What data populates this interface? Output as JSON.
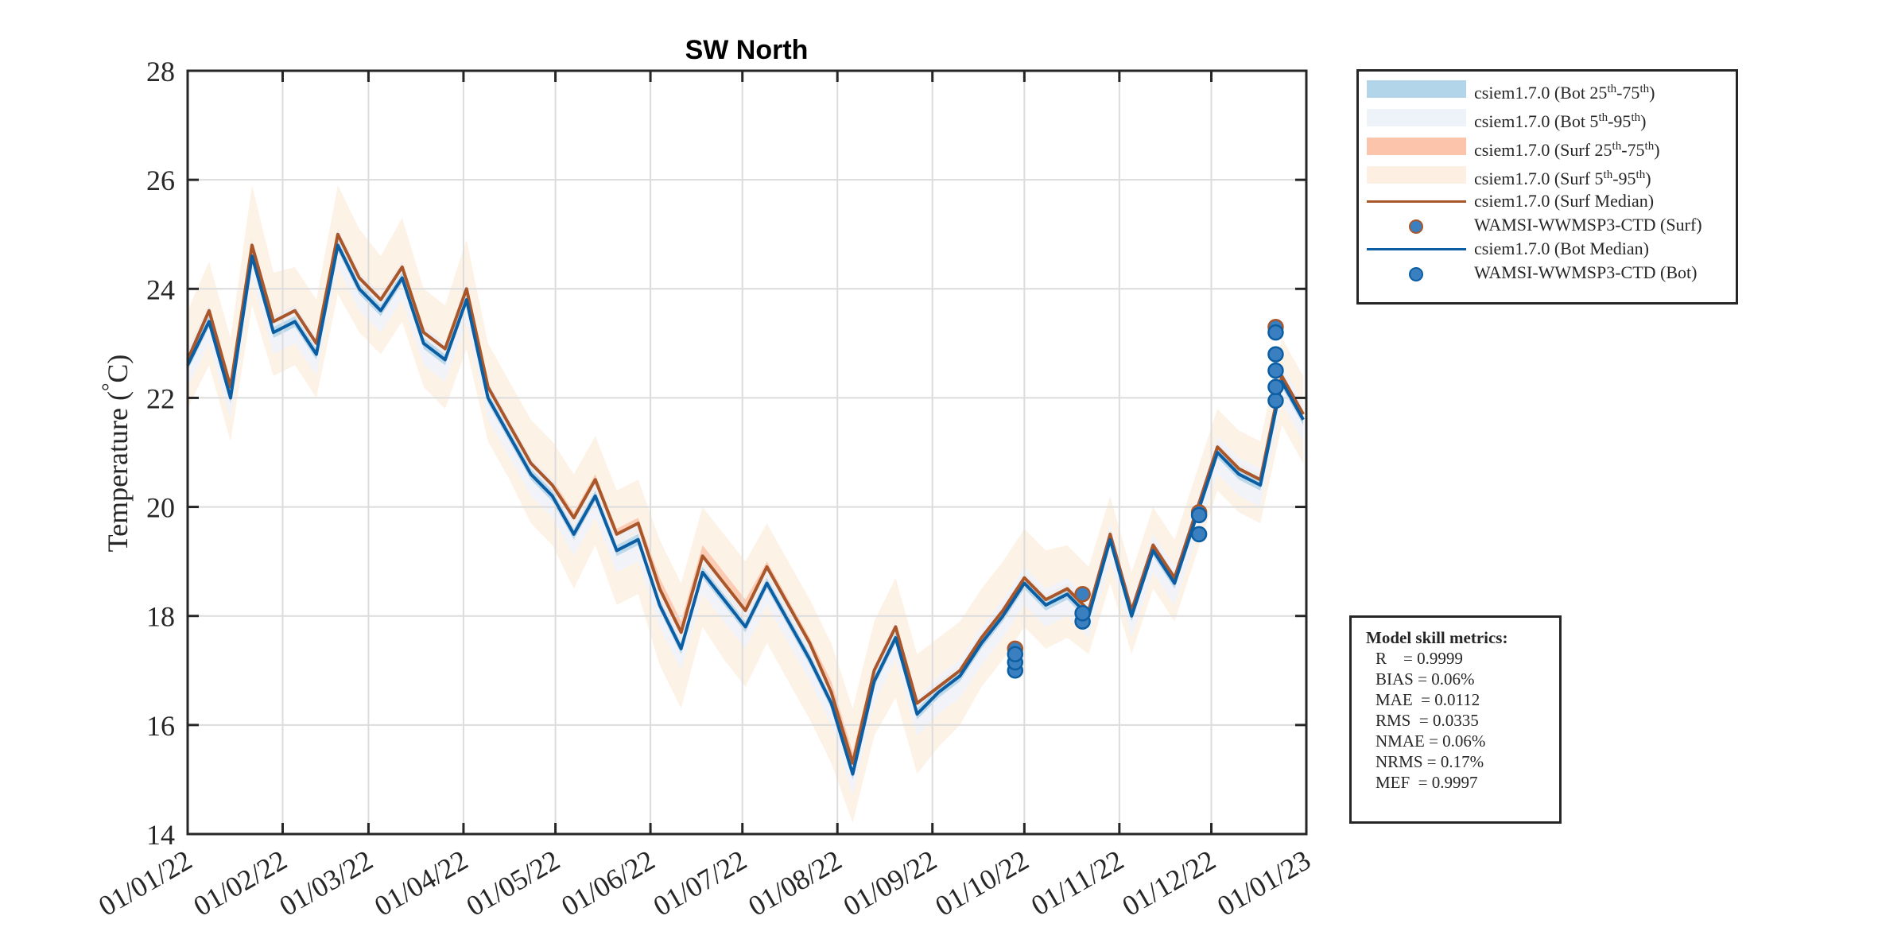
{
  "chart_data": {
    "type": "line",
    "title": "SW North",
    "ylabel": "Temperature (°C)",
    "ylabel_parts": {
      "pre": "Temperature (",
      "deg": "°",
      "post": "C)"
    },
    "xlabel": "",
    "ylim": [
      14,
      28
    ],
    "yticks": [
      14,
      16,
      18,
      20,
      22,
      24,
      26,
      28
    ],
    "xlim": [
      "2022-01-01",
      "2023-01-01"
    ],
    "xticks": [
      "2022-01-01",
      "2022-02-01",
      "2022-03-01",
      "2022-04-01",
      "2022-05-01",
      "2022-06-01",
      "2022-07-01",
      "2022-08-01",
      "2022-09-01",
      "2022-10-01",
      "2022-11-01",
      "2022-12-01",
      "2023-01-01"
    ],
    "xtick_labels": [
      "01/01/22",
      "01/02/22",
      "01/03/22",
      "01/04/22",
      "01/05/22",
      "01/06/22",
      "01/07/22",
      "01/08/22",
      "01/09/22",
      "01/10/22",
      "01/11/22",
      "01/12/22",
      "01/01/23"
    ],
    "grid": true,
    "legend_placement": "outside-top-right",
    "colors": {
      "bot_25_75": "#b3d5ea",
      "bot_5_95": "#eef3fa",
      "surf_25_75": "#fcc5ab",
      "surf_5_95": "#fdf0e2",
      "surf_median": "#a9572a",
      "bot_median": "#0c5ea3",
      "obs_fill": "#3a7fbf",
      "grid": "#dcdcdc",
      "axis": "#262626"
    },
    "x": [
      "2022-01-01",
      "2022-01-08",
      "2022-01-15",
      "2022-01-22",
      "2022-01-29",
      "2022-02-05",
      "2022-02-12",
      "2022-02-19",
      "2022-02-26",
      "2022-03-05",
      "2022-03-12",
      "2022-03-19",
      "2022-03-26",
      "2022-04-02",
      "2022-04-09",
      "2022-04-16",
      "2022-04-23",
      "2022-04-30",
      "2022-05-07",
      "2022-05-14",
      "2022-05-21",
      "2022-05-28",
      "2022-06-04",
      "2022-06-11",
      "2022-06-18",
      "2022-06-25",
      "2022-07-02",
      "2022-07-09",
      "2022-07-16",
      "2022-07-23",
      "2022-07-30",
      "2022-08-06",
      "2022-08-13",
      "2022-08-20",
      "2022-08-27",
      "2022-09-03",
      "2022-09-10",
      "2022-09-17",
      "2022-09-24",
      "2022-10-01",
      "2022-10-08",
      "2022-10-15",
      "2022-10-22",
      "2022-10-29",
      "2022-11-05",
      "2022-11-12",
      "2022-11-19",
      "2022-11-26",
      "2022-12-03",
      "2022-12-10",
      "2022-12-17",
      "2022-12-24",
      "2022-12-31"
    ],
    "series": [
      {
        "name": "csiem1.7.0 (Surf 5th-95th)",
        "kind": "band",
        "lower": [
          21.8,
          22.6,
          21.2,
          23.7,
          22.4,
          22.6,
          22.0,
          23.9,
          23.2,
          22.8,
          23.4,
          22.2,
          21.8,
          22.9,
          21.2,
          20.5,
          19.7,
          19.3,
          18.5,
          19.3,
          18.2,
          18.4,
          17.1,
          16.3,
          17.8,
          17.2,
          16.7,
          17.5,
          16.8,
          16.1,
          15.3,
          14.2,
          15.8,
          16.5,
          15.1,
          15.6,
          16.0,
          16.7,
          17.2,
          17.8,
          17.4,
          17.6,
          17.3,
          18.6,
          17.3,
          18.5,
          17.9,
          19.1,
          20.3,
          19.9,
          19.7,
          21.5,
          20.8
        ],
        "upper": [
          23.6,
          24.5,
          23.1,
          25.9,
          24.3,
          24.4,
          23.8,
          25.9,
          25.1,
          24.6,
          25.3,
          24.0,
          23.7,
          24.9,
          23.0,
          22.3,
          21.6,
          21.2,
          20.6,
          21.3,
          20.3,
          20.5,
          19.4,
          18.6,
          20.0,
          19.5,
          19.0,
          19.7,
          19.0,
          18.3,
          17.5,
          16.3,
          17.9,
          18.7,
          17.3,
          17.6,
          17.9,
          18.5,
          19.0,
          19.6,
          19.2,
          19.3,
          18.9,
          20.2,
          18.8,
          20.0,
          19.4,
          20.6,
          21.8,
          21.4,
          21.2,
          23.1,
          22.4
        ]
      },
      {
        "name": "csiem1.7.0 (Surf 25th-75th)",
        "kind": "band",
        "lower": [
          22.5,
          23.3,
          21.9,
          24.5,
          23.1,
          23.3,
          22.7,
          24.7,
          23.9,
          23.5,
          24.1,
          22.9,
          22.6,
          23.7,
          21.9,
          21.2,
          20.5,
          20.1,
          19.4,
          20.1,
          19.1,
          19.3,
          18.1,
          17.3,
          18.7,
          18.2,
          17.7,
          18.5,
          17.8,
          17.1,
          16.3,
          15.0,
          16.7,
          17.5,
          16.1,
          16.5,
          16.8,
          17.4,
          17.9,
          18.5,
          18.1,
          18.3,
          17.9,
          19.3,
          17.9,
          19.1,
          18.5,
          19.7,
          20.9,
          20.5,
          20.3,
          22.2,
          21.5
        ],
        "upper": [
          22.9,
          23.7,
          22.3,
          24.9,
          23.5,
          23.7,
          23.1,
          25.1,
          24.3,
          23.9,
          24.5,
          23.3,
          23.0,
          24.1,
          22.3,
          21.6,
          20.9,
          20.5,
          19.9,
          20.6,
          19.6,
          19.8,
          18.7,
          17.9,
          19.3,
          18.8,
          18.3,
          19.0,
          18.3,
          17.6,
          16.8,
          15.5,
          17.1,
          17.9,
          16.5,
          16.8,
          17.1,
          17.7,
          18.2,
          18.8,
          18.4,
          18.6,
          18.2,
          19.6,
          18.2,
          19.4,
          18.8,
          20.0,
          21.2,
          20.8,
          20.6,
          22.5,
          21.8
        ]
      },
      {
        "name": "csiem1.7.0 (Bot 5th-95th)",
        "kind": "band",
        "lower": [
          22.2,
          23.0,
          21.6,
          24.2,
          22.8,
          23.0,
          22.4,
          24.4,
          23.6,
          23.2,
          23.8,
          22.6,
          22.3,
          23.4,
          21.6,
          20.9,
          20.2,
          19.8,
          19.1,
          19.8,
          18.8,
          19.0,
          17.8,
          17.0,
          18.4,
          17.9,
          17.4,
          18.2,
          17.5,
          16.8,
          16.0,
          14.7,
          16.4,
          17.2,
          15.8,
          16.2,
          16.5,
          17.1,
          17.6,
          18.2,
          17.8,
          18.0,
          17.6,
          19.0,
          17.6,
          18.8,
          18.2,
          19.4,
          20.6,
          20.2,
          20.0,
          21.9,
          21.2
        ],
        "upper": [
          22.9,
          23.7,
          22.3,
          24.9,
          23.5,
          23.7,
          23.1,
          25.1,
          24.3,
          23.9,
          24.5,
          23.3,
          23.0,
          24.1,
          22.3,
          21.6,
          20.9,
          20.5,
          19.8,
          20.5,
          19.5,
          19.7,
          18.5,
          17.7,
          19.1,
          18.6,
          18.1,
          18.9,
          18.2,
          17.5,
          16.7,
          15.4,
          17.1,
          17.9,
          16.5,
          16.9,
          17.2,
          17.8,
          18.3,
          18.9,
          18.5,
          18.7,
          18.3,
          19.7,
          18.3,
          19.5,
          18.9,
          20.1,
          21.3,
          20.9,
          20.7,
          22.6,
          21.9
        ]
      },
      {
        "name": "csiem1.7.0 (Bot 25th-75th)",
        "kind": "band",
        "lower": [
          22.5,
          23.3,
          21.9,
          24.5,
          23.1,
          23.3,
          22.7,
          24.7,
          23.9,
          23.5,
          24.1,
          22.9,
          22.6,
          23.7,
          21.9,
          21.2,
          20.5,
          20.1,
          19.4,
          20.1,
          19.1,
          19.3,
          18.1,
          17.3,
          18.7,
          18.2,
          17.7,
          18.5,
          17.8,
          17.1,
          16.3,
          15.0,
          16.7,
          17.5,
          16.1,
          16.5,
          16.8,
          17.4,
          17.9,
          18.5,
          18.1,
          18.3,
          17.9,
          19.3,
          17.9,
          19.1,
          18.5,
          19.7,
          20.9,
          20.5,
          20.3,
          22.2,
          21.5
        ],
        "upper": [
          22.7,
          23.5,
          22.1,
          24.7,
          23.3,
          23.5,
          22.9,
          24.9,
          24.1,
          23.7,
          24.3,
          23.1,
          22.8,
          23.9,
          22.1,
          21.4,
          20.7,
          20.3,
          19.6,
          20.3,
          19.3,
          19.5,
          18.3,
          17.5,
          18.9,
          18.4,
          17.9,
          18.7,
          18.0,
          17.3,
          16.5,
          15.2,
          16.9,
          17.7,
          16.3,
          16.7,
          17.0,
          17.6,
          18.1,
          18.7,
          18.3,
          18.5,
          18.1,
          19.5,
          18.1,
          19.3,
          18.7,
          19.9,
          21.1,
          20.7,
          20.5,
          22.4,
          21.7
        ]
      },
      {
        "name": "csiem1.7.0 (Surf Median)",
        "kind": "line",
        "values": [
          22.7,
          23.6,
          22.2,
          24.8,
          23.4,
          23.6,
          23.0,
          25.0,
          24.2,
          23.8,
          24.4,
          23.2,
          22.9,
          24.0,
          22.2,
          21.5,
          20.8,
          20.4,
          19.8,
          20.5,
          19.5,
          19.7,
          18.5,
          17.7,
          19.1,
          18.6,
          18.1,
          18.9,
          18.2,
          17.5,
          16.6,
          15.3,
          17.0,
          17.8,
          16.4,
          16.7,
          17.0,
          17.6,
          18.1,
          18.7,
          18.3,
          18.5,
          18.1,
          19.5,
          18.1,
          19.3,
          18.7,
          19.9,
          21.1,
          20.7,
          20.5,
          22.4,
          21.7
        ]
      },
      {
        "name": "csiem1.7.0 (Bot Median)",
        "kind": "line",
        "values": [
          22.6,
          23.4,
          22.0,
          24.6,
          23.2,
          23.4,
          22.8,
          24.8,
          24.0,
          23.6,
          24.2,
          23.0,
          22.7,
          23.8,
          22.0,
          21.3,
          20.6,
          20.2,
          19.5,
          20.2,
          19.2,
          19.4,
          18.2,
          17.4,
          18.8,
          18.3,
          17.8,
          18.6,
          17.9,
          17.2,
          16.4,
          15.1,
          16.8,
          17.6,
          16.2,
          16.6,
          16.9,
          17.5,
          18.0,
          18.6,
          18.2,
          18.4,
          18.0,
          19.4,
          18.0,
          19.2,
          18.6,
          19.8,
          21.0,
          20.6,
          20.4,
          22.3,
          21.6
        ]
      }
    ],
    "observations": {
      "surf": {
        "name": "WAMSI-WWMSP3-CTD (Surf)",
        "x": [
          "2022-09-28",
          "2022-10-20",
          "2022-11-27",
          "2022-12-22"
        ],
        "values": [
          17.4,
          18.4,
          19.9,
          23.3
        ]
      },
      "bot": {
        "name": "WAMSI-WWMSP3-CTD (Bot)",
        "x": [
          "2022-09-28",
          "2022-09-28",
          "2022-09-28",
          "2022-10-20",
          "2022-10-20",
          "2022-11-27",
          "2022-11-27",
          "2022-12-22",
          "2022-12-22",
          "2022-12-22",
          "2022-12-22",
          "2022-12-22"
        ],
        "values": [
          17.0,
          17.15,
          17.3,
          17.9,
          18.05,
          19.5,
          19.85,
          21.95,
          22.2,
          22.5,
          22.8,
          23.2
        ]
      }
    }
  },
  "legend": {
    "items": [
      {
        "type": "band",
        "color_key": "bot_25_75",
        "pre": "csiem1.7.0 (Bot 25",
        "sup1": "th",
        "mid": "-75",
        "sup2": "th",
        "post": ")"
      },
      {
        "type": "band",
        "color_key": "bot_5_95",
        "pre": "csiem1.7.0 (Bot 5",
        "sup1": "th",
        "mid": "-95",
        "sup2": "th",
        "post": ")"
      },
      {
        "type": "band",
        "color_key": "surf_25_75",
        "pre": "csiem1.7.0 (Surf 25",
        "sup1": "th",
        "mid": "-75",
        "sup2": "th",
        "post": ")"
      },
      {
        "type": "band",
        "color_key": "surf_5_95",
        "pre": "csiem1.7.0 (Surf 5",
        "sup1": "th",
        "mid": "-95",
        "sup2": "th",
        "post": ")"
      },
      {
        "type": "line",
        "color_key": "surf_median",
        "pre": "csiem1.7.0 (Surf Median)"
      },
      {
        "type": "marker",
        "edge_key": "surf_median",
        "pre": "WAMSI-WWMSP3-CTD (Surf)"
      },
      {
        "type": "line",
        "color_key": "bot_median",
        "pre": "csiem1.7.0 (Bot Median)"
      },
      {
        "type": "marker",
        "edge_key": "bot_median",
        "pre": "WAMSI-WWMSP3-CTD (Bot)"
      }
    ]
  },
  "metrics": {
    "title": "Model skill metrics:",
    "lines": [
      "R    = 0.9999",
      "BIAS = 0.06%",
      "MAE  = 0.0112",
      "RMS  = 0.0335",
      "NMAE = 0.06%",
      "NRMS = 0.17%",
      "MEF  = 0.9997"
    ]
  }
}
